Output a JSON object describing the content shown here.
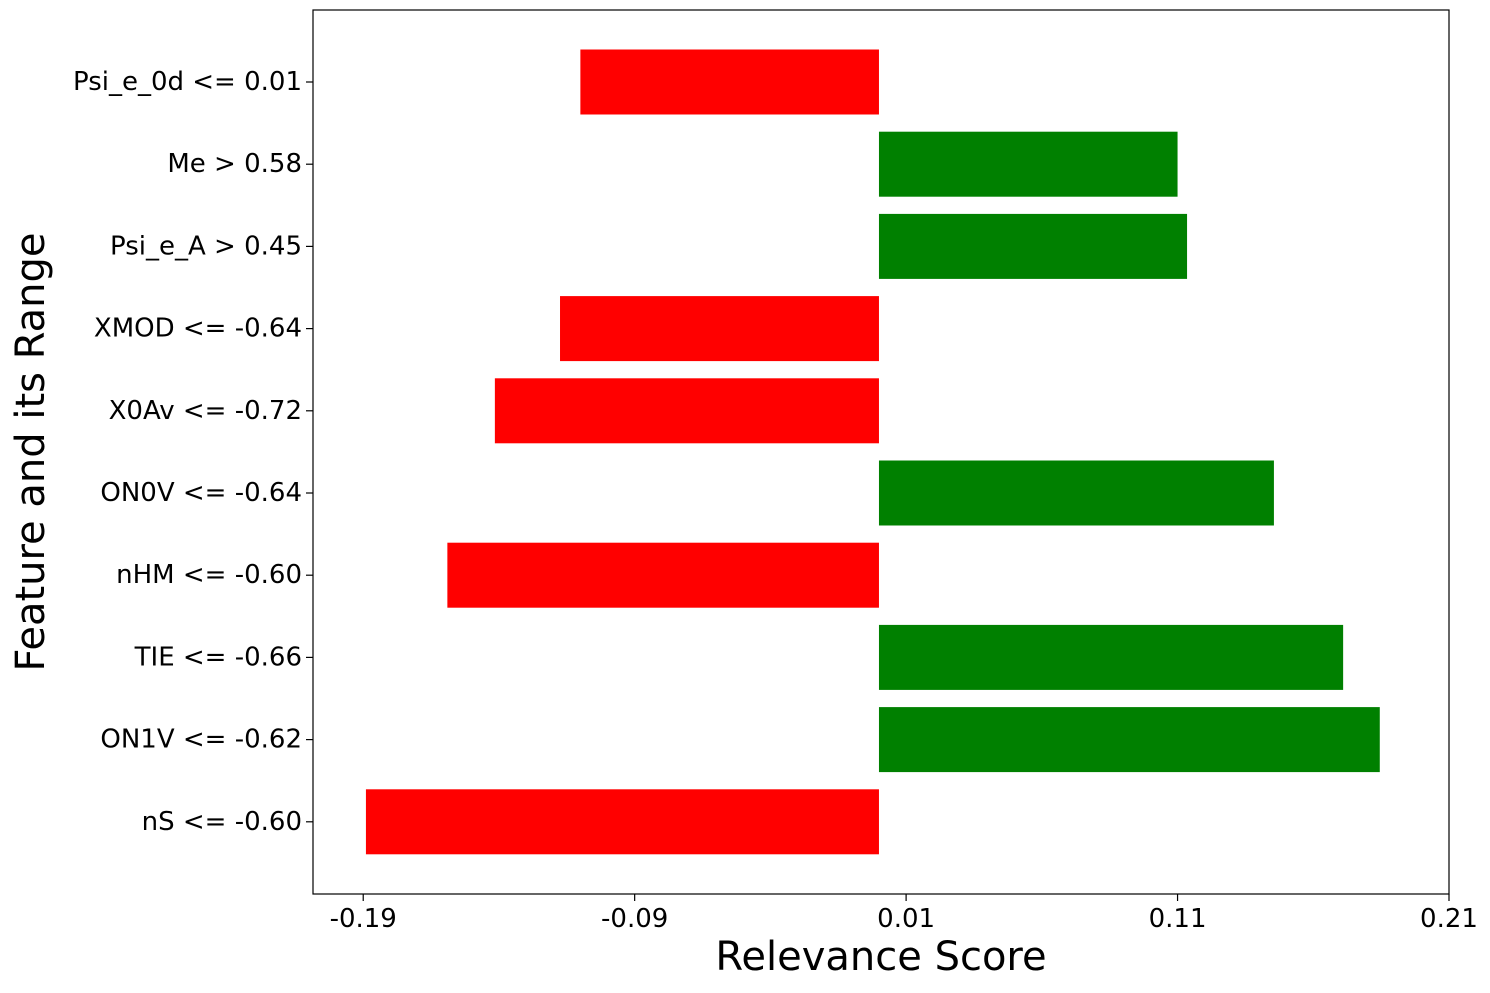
{
  "chart_data": {
    "type": "bar",
    "orientation": "horizontal",
    "title": "",
    "xlabel": "Relevance Score",
    "ylabel": "Feature and its Range",
    "categories": [
      "Psi_e_0d <= 0.01",
      "Me > 0.58",
      "Psi_e_A > 0.45",
      "XMOD <= -0.64",
      "X0Av <= -0.72",
      "ON0V <= -0.64",
      "nHM <= -0.60",
      "TIE <= -0.66",
      "ON1V <= -0.62",
      "nS <= -0.60"
    ],
    "values": [
      -0.11,
      0.11,
      0.1135,
      -0.1175,
      -0.1415,
      0.1455,
      -0.159,
      0.171,
      0.1845,
      -0.189
    ],
    "colors": {
      "positive": "#008000",
      "negative": "#ff0000"
    },
    "xlim": [
      -0.2085,
      0.21
    ],
    "xticks": [
      -0.19,
      -0.09,
      0.01,
      0.11,
      0.21
    ],
    "xtick_labels": [
      "-0.19",
      "-0.09",
      "0.01",
      "0.11",
      "0.21"
    ],
    "grid": false,
    "legend": "none"
  }
}
